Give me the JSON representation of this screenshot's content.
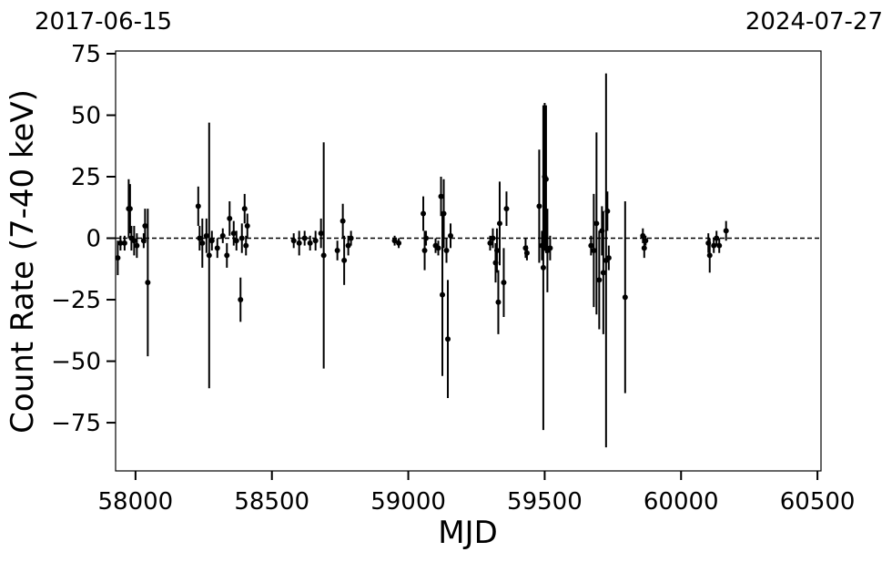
{
  "chart_data": {
    "type": "errorbar_scatter",
    "xlabel": "MJD",
    "ylabel": "Count Rate (7-40 keV)",
    "top_labels": [
      "2017-06-15",
      "2024-07-27"
    ],
    "xlim": [
      57927,
      60513
    ],
    "ylim": [
      -94.6,
      76.1
    ],
    "xticks": [
      58000,
      58500,
      59000,
      59500,
      60000,
      60500
    ],
    "yticks": [
      {
        "value": -75,
        "label": "−75"
      },
      {
        "value": -50,
        "label": "−50"
      },
      {
        "value": -25,
        "label": "−25"
      },
      0,
      25,
      50,
      75
    ],
    "hline": 0,
    "series": [
      {
        "color": "#000000",
        "x": [
          57935,
          57945,
          57960,
          57975,
          57980,
          57985,
          57995,
          58005,
          58030,
          58035,
          58045,
          58230,
          58235,
          58245,
          58260,
          58270,
          58280,
          58300,
          58320,
          58335,
          58345,
          58360,
          58370,
          58385,
          58390,
          58400,
          58405,
          58410,
          58580,
          58600,
          58620,
          58640,
          58660,
          58680,
          58690,
          58740,
          58760,
          58765,
          58780,
          58790,
          58950,
          58965,
          59055,
          59060,
          59065,
          59100,
          59110,
          59120,
          59125,
          59130,
          59140,
          59145,
          59155,
          59300,
          59310,
          59320,
          59325,
          59330,
          59335,
          59350,
          59360,
          59430,
          59435,
          59480,
          59490,
          59495,
          59500,
          59505,
          59510,
          59520,
          59670,
          59680,
          59690,
          59700,
          59710,
          59715,
          59725,
          59730,
          59735,
          59795,
          59860,
          59865,
          59870,
          60100,
          60105,
          60120,
          60130,
          60140,
          60165
        ],
        "values": [
          -8,
          -2,
          -2,
          12,
          12,
          0,
          -1,
          -3,
          -1,
          5,
          -18,
          13,
          0,
          -2,
          1,
          -7,
          -1,
          -4,
          1,
          -7,
          8,
          2,
          -1,
          -25,
          0,
          12,
          -3,
          5,
          -1,
          -2,
          0,
          -2,
          -1,
          2,
          -7,
          -5,
          7,
          -9,
          -3,
          0,
          -1,
          -2,
          10,
          -5,
          0,
          -3,
          -4,
          17,
          -23,
          10,
          -5,
          -41,
          1,
          -2,
          0,
          -10,
          -5,
          -26,
          6,
          -18,
          12,
          -4,
          -6,
          13,
          -3,
          -12,
          25,
          24,
          -5,
          -4,
          -3,
          -5,
          6,
          -17,
          3,
          -14,
          -9,
          11,
          -8,
          -24,
          1,
          -4,
          -1,
          -2,
          -7,
          -3,
          0,
          -3,
          3
        ],
        "errors": [
          7,
          3,
          3,
          12,
          10,
          5,
          6,
          5,
          3,
          7,
          30,
          8,
          5,
          10,
          7,
          54,
          4,
          4,
          3,
          5,
          7,
          5,
          4,
          9,
          6,
          6,
          4,
          5,
          3,
          5,
          3,
          3,
          4,
          6,
          46,
          4,
          7,
          10,
          4,
          3,
          2,
          2,
          7,
          8,
          3,
          3,
          3,
          8,
          33,
          14,
          5,
          24,
          5,
          3,
          4,
          8,
          9,
          13,
          17,
          14,
          7,
          4,
          3,
          23,
          6,
          66,
          30,
          30,
          17,
          5,
          4,
          23,
          37,
          20,
          10,
          25,
          76,
          8,
          5,
          39,
          3,
          4,
          2,
          4,
          7,
          3,
          3,
          3,
          4
        ]
      }
    ]
  }
}
